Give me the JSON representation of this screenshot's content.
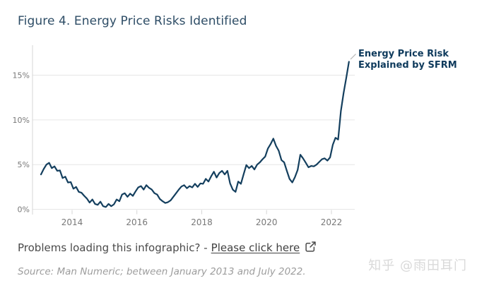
{
  "figure": {
    "title": "Figure 4. Energy Price Risks Identified"
  },
  "annotation": {
    "line1": "Energy Price Risk",
    "line2": "Explained by SFRM"
  },
  "footer": {
    "problems_text": "Problems loading this infographic? -",
    "link_text": "Please click here",
    "source_text": "Source: Man Numeric; between January 2013 and July 2022.",
    "watermark": "知乎 @雨田耳门"
  },
  "colors": {
    "title": "#2e4d66",
    "series_line": "#143f5e",
    "annotation_text": "#0e3a5c",
    "axis_label": "#787878",
    "gridline": "#e6e6e6",
    "axis_line": "#d6d6d6",
    "body_text": "#4a4a4a",
    "source_text": "#9d9d9d",
    "watermark": "#d9d9d9"
  },
  "chart_data": {
    "type": "line",
    "title": "",
    "xlabel": "",
    "ylabel": "",
    "grid": "horizontal-only",
    "legend_position": "annotation-top-right",
    "xlim": [
      2012.78,
      2022.72
    ],
    "ylim": [
      0,
      18.2
    ],
    "x_tick_years": [
      2014,
      2016,
      2018,
      2020,
      2022
    ],
    "x_ticks": [
      "2014",
      "2016",
      "2018",
      "2020",
      "2022"
    ],
    "y_tick_values": [
      0,
      5,
      10,
      15
    ],
    "y_ticks": [
      "0%",
      "5%",
      "10%",
      "15%"
    ],
    "frequency": "monthly",
    "period": "January 2013 to July 2022",
    "series": [
      {
        "name": "Energy Price Risk Explained by SFRM",
        "color": "#143f5e",
        "start_decimal_year": 2013.042,
        "values": [
          3.9,
          4.5,
          5.0,
          5.2,
          4.6,
          4.8,
          4.3,
          4.35,
          3.5,
          3.65,
          3.0,
          3.05,
          2.3,
          2.5,
          1.95,
          1.85,
          1.5,
          1.2,
          0.75,
          1.1,
          0.6,
          0.5,
          0.85,
          0.35,
          0.25,
          0.6,
          0.35,
          0.55,
          1.1,
          0.9,
          1.65,
          1.8,
          1.4,
          1.75,
          1.5,
          2.0,
          2.45,
          2.6,
          2.2,
          2.7,
          2.4,
          2.2,
          1.8,
          1.65,
          1.15,
          0.9,
          0.7,
          0.8,
          1.0,
          1.4,
          1.8,
          2.2,
          2.55,
          2.7,
          2.35,
          2.6,
          2.45,
          2.85,
          2.5,
          2.9,
          2.85,
          3.4,
          3.1,
          3.7,
          4.2,
          3.55,
          4.05,
          4.3,
          3.9,
          4.3,
          2.9,
          2.2,
          1.95,
          3.1,
          2.85,
          3.9,
          4.95,
          4.6,
          4.85,
          4.45,
          5.0,
          5.25,
          5.6,
          5.9,
          6.8,
          7.3,
          7.9,
          7.1,
          6.55,
          5.5,
          5.25,
          4.3,
          3.4,
          3.0,
          3.6,
          4.4,
          6.1,
          5.7,
          5.2,
          4.7,
          4.85,
          4.8,
          5.0,
          5.3,
          5.6,
          5.7,
          5.45,
          5.8,
          7.2,
          8.0,
          7.8,
          11.0,
          13.0,
          14.7,
          16.5
        ]
      }
    ]
  }
}
